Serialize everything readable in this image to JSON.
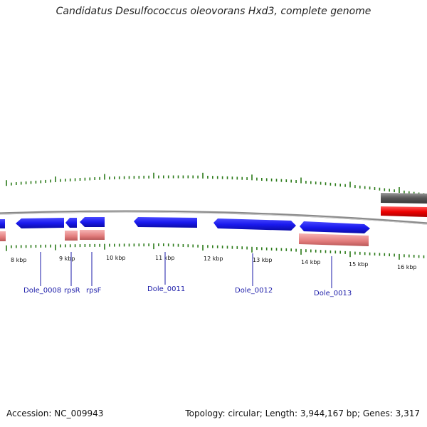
{
  "title": "Candidatus Desulfococcus oleovorans Hxd3, complete genome",
  "footer": {
    "accession": "Accession: NC_009943",
    "summary": "Topology: circular; Length: 3,944,167 bp; Genes: 3,317"
  },
  "scale_labels": [
    "8 kbp",
    "9 kbp",
    "10 kbp",
    "11 kbp",
    "12 kbp",
    "13 kbp",
    "14 kbp",
    "15 kbp",
    "16 kbp"
  ],
  "gene_labels": [
    "Dole_0008",
    "rpsR",
    "rpsF",
    "Dole_0011",
    "Dole_0012",
    "Dole_0013"
  ],
  "colors": {
    "cds": "#1a1aee",
    "rna_feature": "#e07a7a",
    "backbone": "#888888",
    "tick": "#2a7a18",
    "label": "#1a1aa8",
    "gc_dark": "#555555",
    "gc_red": "#ee0000"
  }
}
